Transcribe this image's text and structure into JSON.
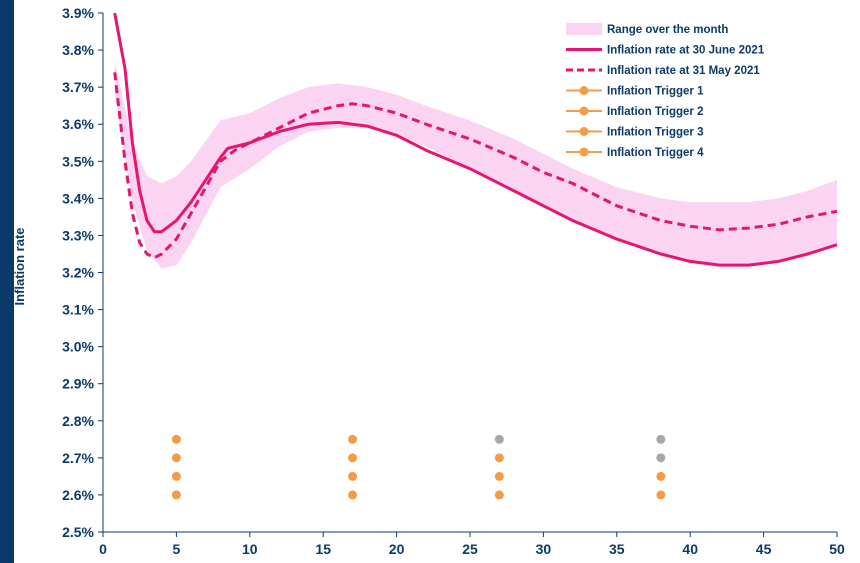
{
  "chart_data": {
    "type": "line",
    "title": "",
    "xlabel": "",
    "ylabel": "Inflation rate",
    "xlim": [
      0,
      50
    ],
    "ylim": [
      2.5,
      3.9
    ],
    "x_ticks": [
      "0",
      "5",
      "10",
      "15",
      "20",
      "25",
      "30",
      "35",
      "40",
      "45",
      "50"
    ],
    "y_ticks": [
      "2.5%",
      "2.6%",
      "2.7%",
      "2.8%",
      "2.9%",
      "3.0%",
      "3.1%",
      "3.2%",
      "3.3%",
      "3.4%",
      "3.5%",
      "3.6%",
      "3.7%",
      "3.8%",
      "3.9%"
    ],
    "grid": false,
    "legend_position": "top-right",
    "legend": [
      "Range over the month",
      "Inflation rate at 30 June 2021",
      "Inflation rate at 31 May 2021",
      "Inflation Trigger 1",
      "Inflation Trigger 2",
      "Inflation Trigger 3",
      "Inflation Trigger 4"
    ],
    "colors": {
      "range": "#fbd4f2",
      "june": "#e5166f",
      "may": "#e5166f",
      "trigger_active": "#f39b45",
      "trigger_inactive": "#a7a7a7",
      "axis_text": "#0b3a6a"
    },
    "range_band": {
      "x": [
        0.8,
        2,
        3,
        4,
        5,
        6,
        8,
        10,
        12,
        14,
        16,
        18,
        20,
        22,
        25,
        28,
        30,
        32,
        35,
        38,
        40,
        42,
        44,
        46,
        48,
        50
      ],
      "upper": [
        3.77,
        3.55,
        3.46,
        3.44,
        3.46,
        3.5,
        3.61,
        3.63,
        3.67,
        3.7,
        3.71,
        3.7,
        3.68,
        3.65,
        3.61,
        3.56,
        3.52,
        3.48,
        3.43,
        3.4,
        3.39,
        3.39,
        3.39,
        3.4,
        3.42,
        3.45
      ],
      "lower": [
        3.68,
        3.39,
        3.26,
        3.21,
        3.22,
        3.28,
        3.43,
        3.48,
        3.54,
        3.58,
        3.59,
        3.59,
        3.57,
        3.54,
        3.48,
        3.42,
        3.38,
        3.34,
        3.29,
        3.25,
        3.23,
        3.22,
        3.22,
        3.23,
        3.25,
        3.27
      ]
    },
    "series": [
      {
        "name": "Inflation rate at 30 June 2021",
        "style": "solid",
        "x": [
          0.8,
          1.5,
          2,
          2.5,
          3,
          3.5,
          4,
          5,
          6,
          7,
          8,
          8.5,
          10,
          12,
          14,
          16,
          18,
          20,
          22,
          25,
          28,
          30,
          32,
          35,
          38,
          40,
          42,
          44,
          46,
          48,
          50
        ],
        "values": [
          3.9,
          3.75,
          3.55,
          3.42,
          3.34,
          3.31,
          3.31,
          3.34,
          3.39,
          3.45,
          3.51,
          3.535,
          3.55,
          3.58,
          3.6,
          3.605,
          3.595,
          3.57,
          3.53,
          3.48,
          3.42,
          3.38,
          3.34,
          3.29,
          3.25,
          3.23,
          3.22,
          3.22,
          3.23,
          3.25,
          3.275
        ]
      },
      {
        "name": "Inflation rate at 31 May 2021",
        "style": "dashed",
        "x": [
          0.8,
          1.5,
          2,
          2.5,
          3,
          3.5,
          4,
          5,
          6,
          7,
          8,
          9,
          10,
          12,
          14,
          16,
          17,
          18,
          20,
          22,
          25,
          28,
          30,
          32,
          35,
          38,
          40,
          42,
          44,
          46,
          48,
          50
        ],
        "values": [
          3.74,
          3.5,
          3.36,
          3.28,
          3.25,
          3.24,
          3.25,
          3.29,
          3.36,
          3.43,
          3.5,
          3.53,
          3.55,
          3.59,
          3.63,
          3.65,
          3.655,
          3.65,
          3.63,
          3.6,
          3.56,
          3.51,
          3.47,
          3.44,
          3.38,
          3.34,
          3.325,
          3.315,
          3.32,
          3.33,
          3.35,
          3.365
        ]
      }
    ],
    "triggers": [
      {
        "name": "Inflation Trigger 1",
        "x": [
          5,
          17,
          27,
          38
        ],
        "y": 2.6,
        "active": [
          true,
          true,
          true,
          true
        ]
      },
      {
        "name": "Inflation Trigger 2",
        "x": [
          5,
          17,
          27,
          38
        ],
        "y": 2.65,
        "active": [
          true,
          true,
          true,
          true
        ]
      },
      {
        "name": "Inflation Trigger 3",
        "x": [
          5,
          17,
          27,
          38
        ],
        "y": 2.7,
        "active": [
          true,
          true,
          true,
          false
        ]
      },
      {
        "name": "Inflation Trigger 4",
        "x": [
          5,
          17,
          27,
          38
        ],
        "y": 2.75,
        "active": [
          true,
          true,
          false,
          false
        ]
      }
    ]
  }
}
